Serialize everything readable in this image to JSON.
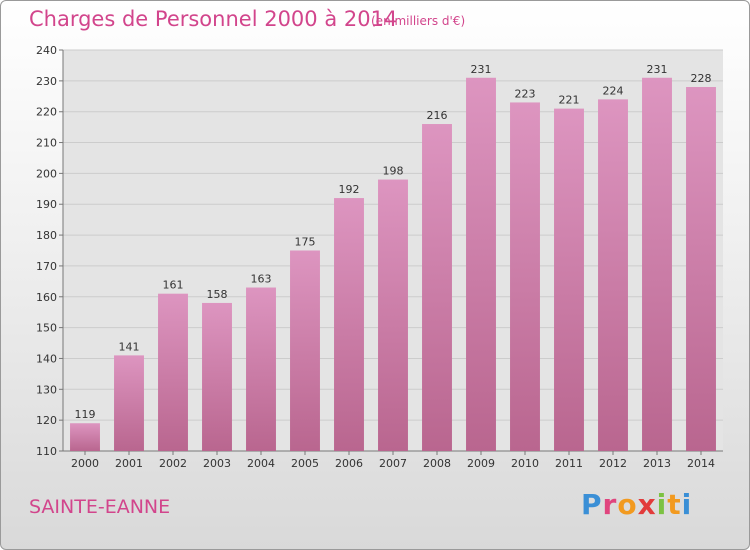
{
  "header": {
    "title": "Charges de Personnel 2000 à 2014",
    "subtitle": "(en milliers d'€)"
  },
  "footer": {
    "commune": "SAINTE-EANNE",
    "logo_letters": [
      "P",
      "r",
      "o",
      "x",
      "i",
      "t",
      "i"
    ],
    "logo_colors": [
      "#3a8fd6",
      "#e0457e",
      "#f29a1f",
      "#e23b3b",
      "#7cc242",
      "#f29a1f",
      "#3a8fd6"
    ]
  },
  "colors": {
    "bar": "#dd95c0",
    "bar_dark": "#b9668f",
    "grid": "#cccccc",
    "plot_bg": "#e4e4e4"
  },
  "chart_data": {
    "type": "bar",
    "categories": [
      "2000",
      "2001",
      "2002",
      "2003",
      "2004",
      "2005",
      "2006",
      "2007",
      "2008",
      "2009",
      "2010",
      "2011",
      "2012",
      "2013",
      "2014"
    ],
    "values": [
      119,
      141,
      161,
      158,
      163,
      175,
      192,
      198,
      216,
      231,
      223,
      221,
      224,
      231,
      228
    ],
    "ylim": [
      110,
      240
    ],
    "yticks": [
      110,
      120,
      130,
      140,
      150,
      160,
      170,
      180,
      190,
      200,
      210,
      220,
      230,
      240
    ],
    "grid": true
  }
}
